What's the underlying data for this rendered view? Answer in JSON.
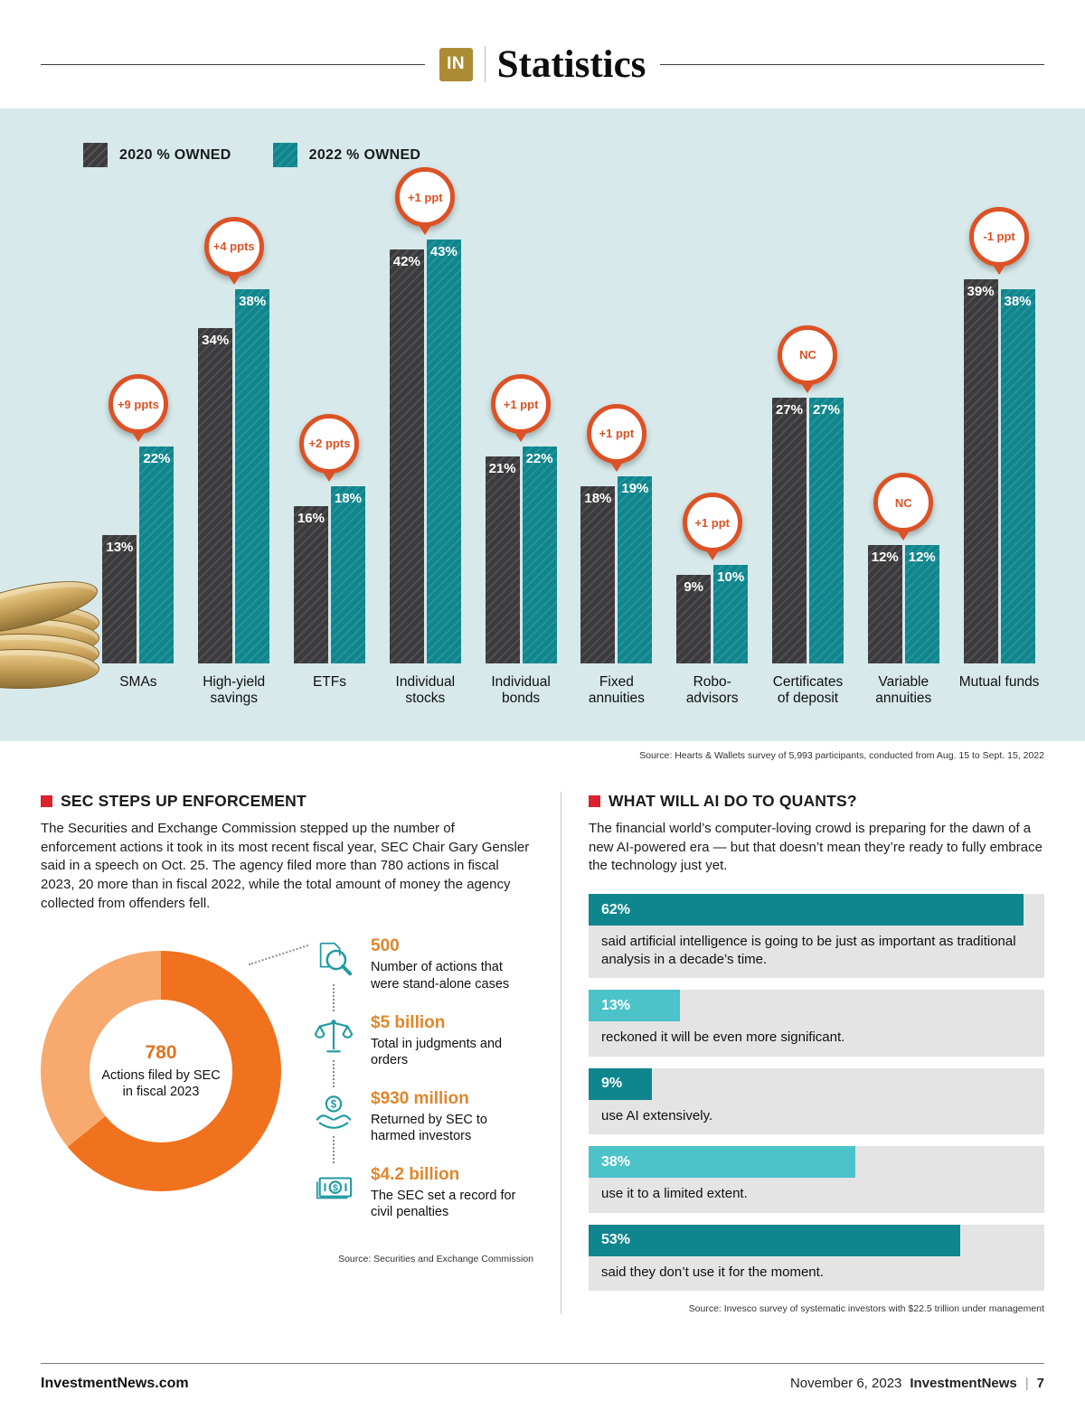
{
  "header": {
    "badge": "IN",
    "title": "Statistics"
  },
  "chart_data": [
    {
      "type": "bar",
      "categories": [
        "SMAs",
        "High-yield savings",
        "ETFs",
        "Individual stocks",
        "Individual bonds",
        "Fixed annuities",
        "Robo-advisors",
        "Certificates of deposit",
        "Variable annuities",
        "Mutual funds"
      ],
      "series": [
        {
          "name": "2020 % OWNED",
          "color": "#3b3b3d",
          "values": [
            13,
            34,
            16,
            42,
            21,
            18,
            9,
            27,
            12,
            39
          ]
        },
        {
          "name": "2022 % OWNED",
          "color": "#0f868d",
          "values": [
            22,
            38,
            18,
            43,
            22,
            19,
            10,
            27,
            12,
            38
          ]
        }
      ],
      "change_badges": [
        "+9 ppts",
        "+4 ppts",
        "+2 ppts",
        "+1 ppt",
        "+1 ppt",
        "+1 ppt",
        "+1 ppt",
        "NC",
        "NC",
        "-1 ppt"
      ],
      "unit": "%",
      "ylim": [
        0,
        45
      ],
      "legend_position": "top-left",
      "source": "Source: Hearts & Wallets survey of 5,993 participants, conducted from Aug. 15 to Sept. 15, 2022"
    },
    {
      "type": "pie",
      "style": "donut",
      "center_value": "780",
      "center_label": "Actions filed by SEC in fiscal 2023",
      "slices": [
        {
          "label": "Stand-alone cases",
          "value": 500,
          "color": "#f0721e"
        },
        {
          "label": "Other actions",
          "value": 280,
          "color": "#f8a96e"
        }
      ]
    },
    {
      "type": "bar",
      "orientation": "horizontal",
      "xlim": [
        0,
        65
      ],
      "bars": [
        {
          "value": 62,
          "caption": "said artificial intelligence is going to be just as important as traditional analysis in a decade’s time.",
          "color": "#0f868d"
        },
        {
          "value": 13,
          "caption": "reckoned it will be even more significant.",
          "color": "#4cc2c9"
        },
        {
          "value": 9,
          "caption": "use AI extensively.",
          "color": "#0f868d"
        },
        {
          "value": 38,
          "caption": "use it to a limited extent.",
          "color": "#4cc2c9"
        },
        {
          "value": 53,
          "caption": "said they don’t use it for the moment.",
          "color": "#0f868d"
        }
      ],
      "source": "Source: Invesco survey of systematic investors with $22.5 trillion under management"
    }
  ],
  "sec_section": {
    "title": "SEC STEPS UP ENFORCEMENT",
    "body": "The Securities and Exchange Commission stepped up the number of enforcement actions it took in its most recent fiscal year, SEC Chair Gary Gensler said in a speech on Oct. 25. The agency filed more than 780 actions in fiscal 2023, 20 more than in fiscal 2022, while the total amount of money the agency collected from offenders fell.",
    "stats": [
      {
        "icon": "magnifier-icon",
        "value": "500",
        "caption": "Number of actions that were stand-alone cases"
      },
      {
        "icon": "scales-icon",
        "value": "$5 billion",
        "caption": "Total in judgments and orders"
      },
      {
        "icon": "hands-dollar-icon",
        "value": "$930 million",
        "caption": "Returned by SEC to harmed investors"
      },
      {
        "icon": "banknote-icon",
        "value": "$4.2 billion",
        "caption": "The SEC set a record for civil penalties"
      }
    ],
    "source": "Source: Securities and Exchange Commission"
  },
  "ai_section": {
    "title": "WHAT WILL AI DO TO QUANTS?",
    "body": "The financial world’s computer-loving crowd is preparing for the dawn of a new AI-powered era — but that doesn’t mean they’re ready to fully embrace the technology just yet."
  },
  "footer": {
    "site": "InvestmentNews.com",
    "date": "November 6, 2023",
    "brand": "InvestmentNews",
    "page_number": "7"
  },
  "colors": {
    "panel_bg": "#d7e9ea",
    "teal_dark": "#0f868d",
    "teal_light": "#4cc2c9",
    "charcoal": "#3b3b3d",
    "badge_orange": "#dc5226",
    "stat_orange": "#e0862c",
    "bullet_red": "#d9232e",
    "gold": "#ab8c35"
  }
}
